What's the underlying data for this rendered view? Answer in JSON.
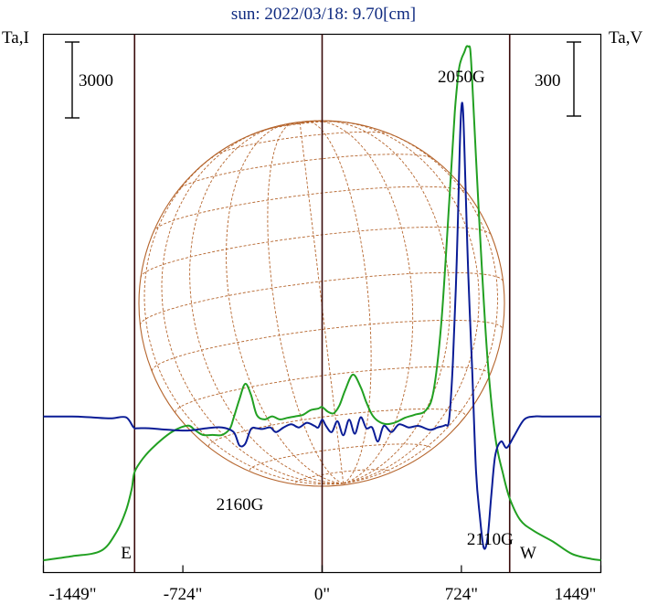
{
  "chart_data": {
    "type": "line",
    "title": "sun: 2022/03/18: 9.70[cm]",
    "left_axis_label": "Ta,I",
    "right_axis_label": "Ta,V",
    "x_ticks": [
      {
        "value": -1449,
        "label": "-1449\""
      },
      {
        "value": -724,
        "label": "-724\""
      },
      {
        "value": 0,
        "label": "0\""
      },
      {
        "value": 724,
        "label": "724\""
      },
      {
        "value": 1449,
        "label": "1449\""
      }
    ],
    "xlim": [
      -1449,
      1449
    ],
    "left_scale_bar_label": "3000",
    "right_scale_bar_label": "300",
    "limb_labels": {
      "east": "E",
      "west": "W"
    },
    "limb_positions": [
      -975,
      975
    ],
    "annotations": [
      {
        "label": "2050G",
        "x": 724
      },
      {
        "label": "2160G",
        "x": -380
      },
      {
        "label": "2110G",
        "x": 850
      }
    ],
    "series": [
      {
        "color": "#22a022",
        "axis": "left",
        "x": [
          -1449,
          -1300,
          -1150,
          -1070,
          -1020,
          -990,
          -975,
          -930,
          -870,
          -780,
          -700,
          -660,
          -620,
          -570,
          -520,
          -480,
          -460,
          -430,
          -400,
          -370,
          -340,
          -300,
          -260,
          -220,
          -180,
          -140,
          -100,
          -60,
          -20,
          0,
          30,
          60,
          90,
          120,
          160,
          200,
          230,
          260,
          290,
          330,
          380,
          430,
          480,
          540,
          580,
          620,
          660,
          690,
          710,
          724,
          738,
          750,
          760,
          770,
          780,
          800,
          830,
          860,
          900,
          940,
          975,
          1030,
          1100,
          1200,
          1300,
          1400,
          1449
        ],
        "values": [
          0,
          130,
          300,
          900,
          1600,
          2300,
          2850,
          3300,
          3700,
          4150,
          4350,
          4200,
          4050,
          4050,
          4050,
          4250,
          4600,
          5200,
          5700,
          5350,
          4700,
          4550,
          4650,
          4550,
          4600,
          4650,
          4700,
          4850,
          4900,
          4950,
          4800,
          4750,
          5000,
          5500,
          6000,
          5600,
          5100,
          4700,
          4500,
          4400,
          4450,
          4600,
          4700,
          4850,
          5500,
          7700,
          11500,
          14500,
          15800,
          16200,
          16400,
          16600,
          16600,
          16500,
          15500,
          13000,
          9500,
          6500,
          4000,
          2800,
          2000,
          1300,
          950,
          600,
          200,
          40,
          0
        ],
        "ylim": [
          -400,
          17000
        ]
      },
      {
        "color": "#0a1c96",
        "axis": "right",
        "x": [
          -1449,
          -1300,
          -1200,
          -1100,
          -1020,
          -980,
          -960,
          -900,
          -800,
          -700,
          -600,
          -520,
          -460,
          -430,
          -400,
          -370,
          -340,
          -310,
          -270,
          -240,
          -200,
          -160,
          -120,
          -80,
          -40,
          -20,
          0,
          20,
          50,
          80,
          110,
          140,
          170,
          200,
          230,
          260,
          290,
          320,
          360,
          400,
          450,
          500,
          560,
          600,
          640,
          660,
          680,
          700,
          715,
          724,
          733,
          745,
          760,
          780,
          800,
          820,
          840,
          860,
          880,
          900,
          930,
          960,
          1000,
          1050,
          1100,
          1150,
          1200,
          1300,
          1449
        ],
        "values": [
          0,
          0,
          -5,
          -12,
          -5,
          -70,
          -75,
          -75,
          -85,
          -90,
          -75,
          -70,
          -100,
          -185,
          -175,
          -80,
          -75,
          -80,
          -70,
          -100,
          -70,
          -50,
          -70,
          -40,
          -60,
          -70,
          -20,
          -60,
          -100,
          -30,
          -120,
          -20,
          -110,
          -5,
          -75,
          -70,
          -160,
          -60,
          -100,
          -50,
          -70,
          -60,
          -85,
          -70,
          -55,
          -20,
          350,
          1000,
          1700,
          1980,
          1950,
          1500,
          900,
          300,
          -350,
          -640,
          -840,
          -780,
          -500,
          -250,
          -160,
          -200,
          -120,
          -20,
          0,
          0,
          0,
          0,
          0
        ],
        "ylim": [
          -1000,
          2450
        ]
      }
    ]
  }
}
